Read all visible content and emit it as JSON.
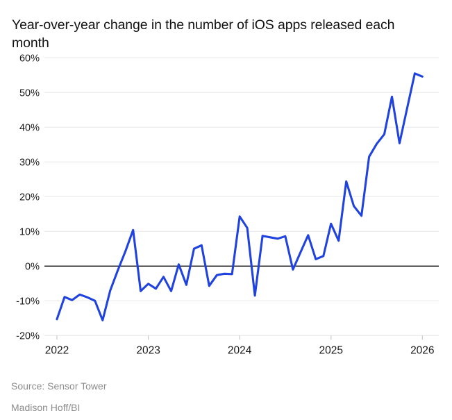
{
  "header": {
    "title": "Year-over-year change in the number of iOS apps released each month"
  },
  "footer": {
    "source": "Source: Sensor Tower",
    "byline": "Madison Hoff/BI"
  },
  "colors": {
    "line": "#2043e0",
    "zero_line": "#000000",
    "gridline": "#e7e7e7",
    "tick_mark": "#c9c9c9",
    "tick_label": "#1a1a1a",
    "muted_text": "#8c8c8c",
    "background": "#ffffff"
  },
  "chart_data": {
    "type": "line",
    "title": "Year-over-year change in the number of iOS apps released each month",
    "xlabel": "",
    "ylabel": "",
    "ylim": [
      -20,
      60
    ],
    "y_tick_step": 10,
    "grid": "horizontal",
    "legend_position": "none",
    "zero_line": true,
    "y_ticks": [
      {
        "value": 60,
        "label": "60%"
      },
      {
        "value": 50,
        "label": "50%"
      },
      {
        "value": 40,
        "label": "40%"
      },
      {
        "value": 30,
        "label": "30%"
      },
      {
        "value": 20,
        "label": "20%"
      },
      {
        "value": 10,
        "label": "10%"
      },
      {
        "value": 0,
        "label": "0%"
      },
      {
        "value": -10,
        "label": "-10%"
      },
      {
        "value": -20,
        "label": "-20%"
      }
    ],
    "x_ticks": [
      {
        "month_index": 0,
        "label": "2022"
      },
      {
        "month_index": 12,
        "label": "2023"
      },
      {
        "month_index": 24,
        "label": "2024"
      },
      {
        "month_index": 36,
        "label": "2025"
      },
      {
        "month_index": 48,
        "label": "2026"
      }
    ],
    "series": [
      {
        "name": "YoY change in iOS apps released (%)",
        "x": [
          "2022-01",
          "2022-02",
          "2022-03",
          "2022-04",
          "2022-05",
          "2022-06",
          "2022-07",
          "2022-08",
          "2022-09",
          "2022-10",
          "2022-11",
          "2022-12",
          "2023-01",
          "2023-02",
          "2023-03",
          "2023-04",
          "2023-05",
          "2023-06",
          "2023-07",
          "2023-08",
          "2023-09",
          "2023-10",
          "2023-11",
          "2023-12",
          "2024-01",
          "2024-02",
          "2024-03",
          "2024-04",
          "2024-05",
          "2024-06",
          "2024-07",
          "2024-08",
          "2024-09",
          "2024-10",
          "2024-11",
          "2024-12",
          "2025-01",
          "2025-02",
          "2025-03",
          "2025-04",
          "2025-05",
          "2025-06",
          "2025-07",
          "2025-08",
          "2025-09",
          "2025-10",
          "2025-11",
          "2025-12",
          "2026-01"
        ],
        "values": [
          -15.3,
          -8.9,
          -9.8,
          -8.2,
          -9.0,
          -10.0,
          -15.6,
          -7.0,
          -1.2,
          4.3,
          10.4,
          -7.2,
          -5.1,
          -6.5,
          -3.1,
          -7.2,
          0.5,
          -5.4,
          5.0,
          6.0,
          -5.7,
          -2.6,
          -2.2,
          -2.3,
          14.3,
          11.0,
          -8.5,
          8.7,
          8.3,
          7.9,
          8.6,
          -1.0,
          4.0,
          8.9,
          2.0,
          2.9,
          12.2,
          7.3,
          24.4,
          17.3,
          14.5,
          31.5,
          35.2,
          38.0,
          48.8,
          35.4,
          45.5,
          55.5,
          54.6
        ]
      }
    ]
  }
}
